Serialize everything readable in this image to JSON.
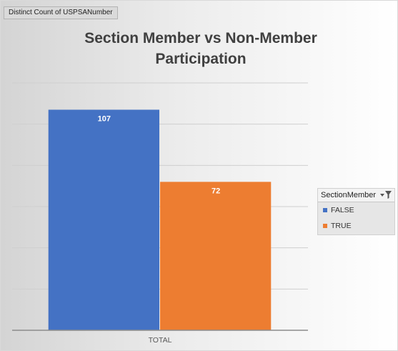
{
  "field_button": {
    "label": "Distinct Count of USPSANumber"
  },
  "chart_data": {
    "type": "bar",
    "title": "Section Member vs Non-Member Participation",
    "categories": [
      "TOTAL"
    ],
    "series": [
      {
        "name": "FALSE",
        "values": [
          107
        ],
        "color": "#4472C4"
      },
      {
        "name": "TRUE",
        "values": [
          72
        ],
        "color": "#ED7D31"
      }
    ],
    "ylim": [
      0,
      120
    ],
    "grid": true,
    "data_labels": true,
    "legend": {
      "title": "SectionMember",
      "placement": "right"
    }
  }
}
